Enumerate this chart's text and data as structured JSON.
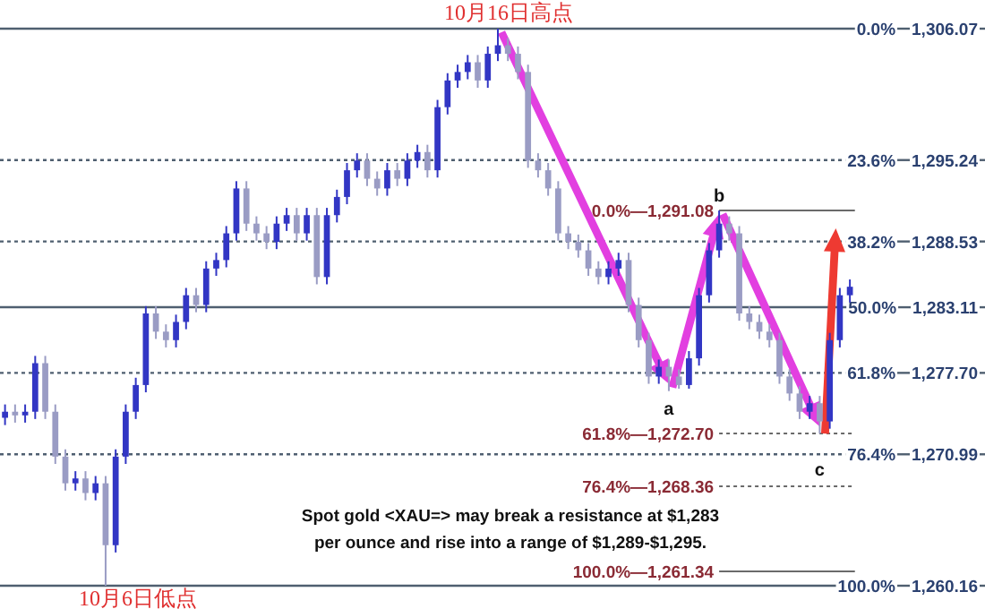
{
  "chart_data": {
    "type": "candlestick",
    "colors": [
      "#3236c4",
      "#9a9cc4",
      "#3236c4",
      "#3236c4",
      "#9a9cc4",
      "#9a9cc4",
      "#9a9cc4",
      "#3236c4",
      "#9a9cc4",
      "#3236c4",
      "#9a9cc4",
      "#3236c4",
      "#3236c4",
      "#3236c4",
      "#3236c4",
      "#9a9cc4",
      "#9a9cc4",
      "#3236c4",
      "#3236c4",
      "#9a9cc4",
      "#3236c4",
      "#3236c4",
      "#3236c4",
      "#3236c4",
      "#9a9cc4",
      "#9a9cc4",
      "#9a9cc4",
      "#3236c4",
      "#3236c4",
      "#9a9cc4",
      "#3236c4",
      "#9a9cc4",
      "#3236c4",
      "#3236c4",
      "#3236c4",
      "#3236c4",
      "#9a9cc4",
      "#9a9cc4",
      "#3236c4",
      "#9a9cc4",
      "#3236c4",
      "#3236c4",
      "#9a9cc4",
      "#3236c4",
      "#3236c4",
      "#3236c4",
      "#3236c4",
      "#9a9cc4",
      "#3236c4",
      "#3236c4",
      "#9a9cc4",
      "#9a9cc4",
      "#9a9cc4",
      "#9a9cc4",
      "#9a9cc4",
      "#9a9cc4",
      "#9a9cc4",
      "#9a9cc4",
      "#9a9cc4",
      "#9a9cc4",
      "#3236c4",
      "#3236c4",
      "#9a9cc4",
      "#9a9cc4",
      "#9a9cc4",
      "#3236c4",
      "#9a9cc4",
      "#9a9cc4",
      "#3236c4",
      "#3236c4",
      "#3236c4",
      "#3236c4",
      "#9a9cc4",
      "#9a9cc4",
      "#9a9cc4",
      "#9a9cc4",
      "#9a9cc4",
      "#9a9cc4",
      "#9a9cc4",
      "#9a9cc4",
      "#3236c4",
      "#9a9cc4",
      "#3236c4",
      "#3236c4",
      "#3236c4"
    ],
    "categories": [
      null,
      null,
      null,
      null,
      null,
      null,
      null,
      null,
      null,
      null,
      null,
      null,
      null,
      null,
      null,
      null,
      null,
      null,
      null,
      null,
      null,
      null,
      null,
      null,
      null,
      null,
      null,
      null,
      null,
      null,
      null,
      null,
      null,
      null,
      null,
      null,
      null,
      null,
      null,
      null,
      null,
      null,
      null,
      null,
      null,
      null,
      null,
      null,
      null,
      null,
      null,
      null,
      null,
      null,
      null,
      null,
      null,
      null,
      null,
      null,
      null,
      null,
      null,
      null,
      null,
      null,
      null,
      null,
      null,
      null,
      null,
      null,
      null,
      null,
      null,
      null,
      null,
      null,
      null,
      null,
      null,
      null,
      null,
      null,
      null
    ],
    "ohlc": [
      [
        1274.0,
        1275.1,
        1273.4,
        1274.5
      ],
      [
        1274.5,
        1275.1,
        1273.6,
        1274.2
      ],
      [
        1274.2,
        1275.1,
        1273.6,
        1274.5
      ],
      [
        1274.5,
        1279.1,
        1273.9,
        1278.5
      ],
      [
        1278.5,
        1279.1,
        1273.9,
        1274.5
      ],
      [
        1274.5,
        1275.1,
        1270.2,
        1270.8
      ],
      [
        1270.8,
        1271.4,
        1268.0,
        1268.6
      ],
      [
        1268.6,
        1269.6,
        1268.0,
        1269.0
      ],
      [
        1269.0,
        1269.6,
        1267.2,
        1267.8
      ],
      [
        1267.8,
        1269.2,
        1267.2,
        1268.6
      ],
      [
        1268.6,
        1269.2,
        1260.16,
        1263.5
      ],
      [
        1263.5,
        1271.4,
        1262.9,
        1270.8
      ],
      [
        1270.8,
        1275.1,
        1270.2,
        1274.5
      ],
      [
        1274.5,
        1277.3,
        1273.9,
        1276.7
      ],
      [
        1276.7,
        1283.2,
        1276.1,
        1282.6
      ],
      [
        1282.6,
        1283.2,
        1280.5,
        1281.1
      ],
      [
        1281.1,
        1281.7,
        1279.8,
        1280.4
      ],
      [
        1280.4,
        1282.5,
        1279.8,
        1281.9
      ],
      [
        1281.9,
        1284.7,
        1281.3,
        1284.1
      ],
      [
        1284.1,
        1284.7,
        1282.7,
        1283.3
      ],
      [
        1283.3,
        1286.9,
        1282.7,
        1286.3
      ],
      [
        1286.3,
        1287.6,
        1285.7,
        1287.0
      ],
      [
        1287.0,
        1289.8,
        1286.4,
        1289.2
      ],
      [
        1289.2,
        1293.5,
        1288.6,
        1292.9
      ],
      [
        1292.9,
        1293.5,
        1289.4,
        1290.0
      ],
      [
        1290.0,
        1290.6,
        1288.6,
        1289.2
      ],
      [
        1289.2,
        1289.8,
        1287.9,
        1288.5
      ],
      [
        1288.5,
        1290.6,
        1287.9,
        1290.0
      ],
      [
        1290.0,
        1291.3,
        1289.4,
        1290.7
      ],
      [
        1290.7,
        1291.3,
        1288.6,
        1289.2
      ],
      [
        1289.2,
        1291.3,
        1288.6,
        1290.7
      ],
      [
        1290.7,
        1291.3,
        1285.0,
        1285.6
      ],
      [
        1285.6,
        1291.3,
        1285.0,
        1290.7
      ],
      [
        1290.7,
        1292.8,
        1290.1,
        1292.2
      ],
      [
        1292.2,
        1295.0,
        1291.6,
        1294.4
      ],
      [
        1294.4,
        1295.8,
        1293.8,
        1295.2
      ],
      [
        1295.2,
        1295.8,
        1293.1,
        1293.7
      ],
      [
        1293.7,
        1294.3,
        1292.3,
        1292.9
      ],
      [
        1292.9,
        1295.0,
        1292.3,
        1294.4
      ],
      [
        1294.4,
        1295.0,
        1293.1,
        1293.7
      ],
      [
        1293.7,
        1295.8,
        1293.1,
        1295.2
      ],
      [
        1295.2,
        1296.5,
        1294.6,
        1295.9
      ],
      [
        1295.9,
        1296.5,
        1293.8,
        1294.4
      ],
      [
        1294.4,
        1300.2,
        1293.8,
        1299.6
      ],
      [
        1299.6,
        1302.4,
        1299.0,
        1301.8
      ],
      [
        1301.8,
        1303.1,
        1301.2,
        1302.5
      ],
      [
        1302.5,
        1303.9,
        1301.9,
        1303.3
      ],
      [
        1303.3,
        1303.9,
        1301.2,
        1301.8
      ],
      [
        1301.8,
        1304.6,
        1301.2,
        1304.0
      ],
      [
        1304.0,
        1306.07,
        1303.4,
        1304.7
      ],
      [
        1304.7,
        1305.3,
        1303.4,
        1304.0
      ],
      [
        1304.0,
        1304.6,
        1301.9,
        1302.5
      ],
      [
        1302.5,
        1303.1,
        1294.6,
        1295.2
      ],
      [
        1295.2,
        1295.8,
        1293.8,
        1294.4
      ],
      [
        1294.4,
        1295.0,
        1292.3,
        1292.9
      ],
      [
        1292.9,
        1293.5,
        1288.6,
        1289.2
      ],
      [
        1289.2,
        1289.8,
        1287.9,
        1288.5
      ],
      [
        1288.5,
        1289.1,
        1287.2,
        1287.8
      ],
      [
        1287.8,
        1288.4,
        1285.7,
        1286.3
      ],
      [
        1286.3,
        1286.9,
        1285.0,
        1285.6
      ],
      [
        1285.6,
        1286.9,
        1285.0,
        1286.3
      ],
      [
        1286.3,
        1287.6,
        1285.7,
        1287.0
      ],
      [
        1287.0,
        1287.6,
        1282.7,
        1283.3
      ],
      [
        1283.3,
        1283.9,
        1279.8,
        1280.4
      ],
      [
        1280.4,
        1281.0,
        1276.8,
        1277.4
      ],
      [
        1277.4,
        1278.8,
        1276.8,
        1278.2
      ],
      [
        1278.2,
        1278.8,
        1276.2,
        1277.4
      ],
      [
        1277.4,
        1278.0,
        1276.4,
        1276.7
      ],
      [
        1276.7,
        1279.5,
        1276.4,
        1278.9
      ],
      [
        1278.9,
        1284.7,
        1278.3,
        1284.1
      ],
      [
        1284.1,
        1288.4,
        1283.5,
        1287.8
      ],
      [
        1287.8,
        1291.08,
        1287.2,
        1290.0
      ],
      [
        1290.0,
        1290.6,
        1288.6,
        1289.2
      ],
      [
        1289.2,
        1289.8,
        1282.0,
        1282.6
      ],
      [
        1282.6,
        1283.2,
        1281.3,
        1281.9
      ],
      [
        1281.9,
        1282.5,
        1280.5,
        1281.1
      ],
      [
        1281.1,
        1281.7,
        1279.8,
        1280.4
      ],
      [
        1280.4,
        1281.0,
        1276.8,
        1277.4
      ],
      [
        1277.4,
        1278.0,
        1275.4,
        1276.0
      ],
      [
        1276.0,
        1276.6,
        1273.9,
        1274.5
      ],
      [
        1274.5,
        1275.8,
        1273.9,
        1275.2
      ],
      [
        1275.2,
        1275.8,
        1272.7,
        1273.7
      ],
      [
        1273.7,
        1281.0,
        1273.1,
        1280.4
      ],
      [
        1280.4,
        1284.7,
        1279.8,
        1284.1
      ],
      [
        1284.1,
        1285.4,
        1283.5,
        1284.8
      ]
    ],
    "ylim": [
      1260.16,
      1306.07
    ],
    "tick_labels": "y",
    "yticks": [
      {
        "value": 1306.07,
        "label": "1,306.07"
      },
      {
        "value": 1295.24,
        "label": "1,295.24"
      },
      {
        "value": 1288.53,
        "label": "1,288.53"
      },
      {
        "value": 1283.11,
        "label": "1,283.11"
      },
      {
        "value": 1277.7,
        "label": "1,277.70"
      },
      {
        "value": 1270.99,
        "label": "1,270.99"
      },
      {
        "value": 1260.16,
        "label": "1,260.16"
      }
    ],
    "ref_lines": [
      {
        "axis": "y",
        "value": 1306.07,
        "color": "#4f5f70",
        "line_style": "solid"
      },
      {
        "axis": "y",
        "value": 1295.24,
        "color": "#4f5f70",
        "line_style": "dashed"
      },
      {
        "axis": "y",
        "value": 1288.53,
        "color": "#4f5f70",
        "line_style": "dashed"
      },
      {
        "axis": "y",
        "value": 1283.11,
        "color": "#4f5f70",
        "line_style": "solid"
      },
      {
        "axis": "y",
        "value": 1277.7,
        "color": "#4f5f70",
        "line_style": "dashed"
      },
      {
        "axis": "y",
        "value": 1270.99,
        "color": "#4f5f70",
        "line_style": "dashed"
      },
      {
        "axis": "y",
        "value": 1260.16,
        "color": "#4f5f70",
        "line_style": "solid"
      },
      {
        "axis": "y",
        "value": 1291.08,
        "label": "0.0%—1,291.08",
        "color": "#6a6a6a",
        "line_style": "solid"
      },
      {
        "axis": "y",
        "value": 1272.7,
        "label": "61.8%—1,272.70",
        "color": "#6a6a6a",
        "line_style": "dashed"
      },
      {
        "axis": "y",
        "value": 1268.36,
        "label": "76.4%—1,268.36",
        "color": "#6a6a6a",
        "line_style": "dashed"
      },
      {
        "axis": "y",
        "value": 1261.34,
        "label": "100.0%—1,261.34",
        "color": "#6a6a6a",
        "line_style": "solid"
      }
    ],
    "annotations": [
      "0.0%",
      "23.6%",
      "38.2%",
      "50.0%",
      "61.8%",
      "76.4%",
      "100.0%",
      {
        "text": "10月6日低点",
        "y": 1260.16
      },
      {
        "text": "10月16日高点",
        "y": 1306.07
      },
      {
        "text": "a",
        "y": 1276.2
      },
      {
        "text": "b",
        "y": 1291.08
      },
      {
        "text": "c",
        "y": 1272.7
      },
      "Spot gold <XAU=> may break a resistance at $1,283 per ounce and rise into a range of $1,289-$1,295."
    ]
  }
}
